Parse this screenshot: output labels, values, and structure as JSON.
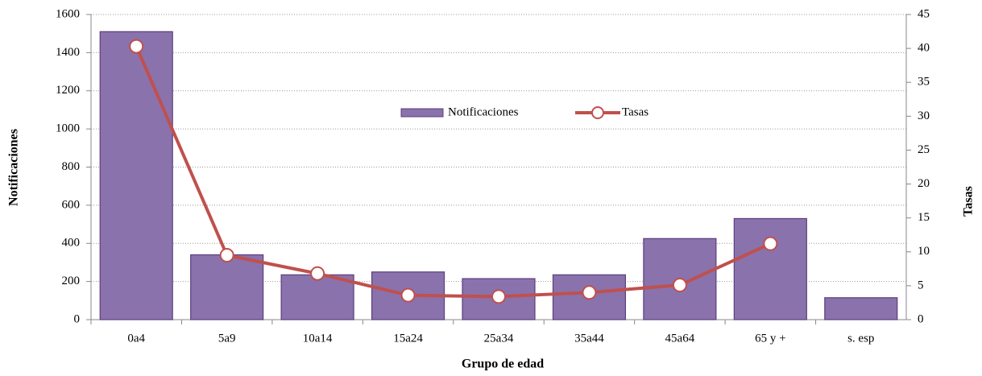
{
  "chart_data": {
    "type": "bar",
    "categories": [
      "0a4",
      "5a9",
      "10a14",
      "15a24",
      "25a34",
      "35a44",
      "45a64",
      "65 y +",
      "s. esp"
    ],
    "series": [
      {
        "name": "Notificaciones",
        "type": "bar",
        "color": "#8a72ad",
        "values": [
          1510,
          340,
          235,
          250,
          215,
          235,
          425,
          530,
          115
        ]
      },
      {
        "name": "Tasas",
        "type": "line",
        "axis": "y2",
        "color": "#c0504d",
        "values": [
          40.3,
          9.5,
          6.8,
          3.6,
          3.4,
          4.0,
          5.1,
          11.2,
          null
        ]
      }
    ],
    "x_label": "Grupo de edad",
    "y_label": "Notificaciones",
    "y2_label": "Tasas",
    "ylim": [
      0,
      1600
    ],
    "yticks": [
      0,
      200,
      400,
      600,
      800,
      1000,
      1200,
      1400,
      1600
    ],
    "y2lim": [
      0,
      45
    ],
    "y2ticks": [
      0,
      5,
      10,
      15,
      20,
      25,
      30,
      35,
      40,
      45
    ],
    "grid": true,
    "legend": "center"
  }
}
